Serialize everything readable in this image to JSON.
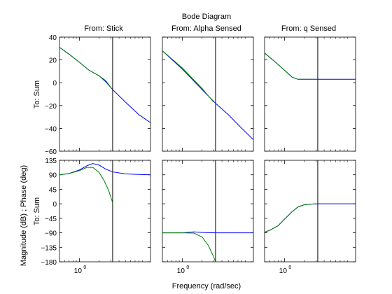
{
  "chart_data": {
    "type": "line",
    "title": "Bode Diagram",
    "xlabel": "Frequency  (rad/sec)",
    "ylabel": "Magnitude (dB) ; Phase (deg)",
    "column_titles": [
      "From: Stick",
      "From: Alpha Sensed",
      "From: q Sensed"
    ],
    "row_labels": [
      "To: Sum",
      "To: Sum"
    ],
    "x_tick_labels": [
      "10",
      "10",
      "10"
    ],
    "x_tick_exponent": "0",
    "xscale": "log",
    "xlim": [
      0.5,
      12
    ],
    "x_tick_value": 1,
    "marker_frequency": 3.2,
    "magnitude_ylim": [
      -60,
      40
    ],
    "magnitude_ticks": [
      "40",
      "20",
      "0",
      "−20",
      "−40",
      "−60"
    ],
    "magnitude_tick_values": [
      40,
      20,
      0,
      -20,
      -40,
      -60
    ],
    "phase_ylim": [
      -180,
      135
    ],
    "phase_ticks": [
      "135",
      "90",
      "45",
      "0",
      "−45",
      "−90",
      "−135",
      "−180"
    ],
    "phase_tick_values": [
      135,
      90,
      45,
      0,
      -45,
      -90,
      -135,
      -180
    ],
    "series_colors": [
      "#0000ff",
      "#008000"
    ],
    "panels": [
      {
        "row": 0,
        "col": 0,
        "series": [
          {
            "color": "#0000ff",
            "x": [
              0.5,
              0.7,
              1.0,
              1.4,
              2.0,
              2.5,
              3.2,
              5,
              8,
              12
            ],
            "y": [
              31,
              25,
              18,
              11,
              6,
              1,
              -6,
              -17,
              -28,
              -35
            ]
          },
          {
            "color": "#008000",
            "x": [
              0.5,
              0.7,
              1.0,
              1.4,
              2.0,
              2.5,
              3.0
            ],
            "y": [
              31,
              25,
              18,
              11,
              6,
              2,
              -4
            ]
          }
        ]
      },
      {
        "row": 0,
        "col": 1,
        "series": [
          {
            "color": "#0000ff",
            "x": [
              0.5,
              1.0,
              2.0,
              3.2,
              5,
              8,
              12
            ],
            "y": [
              28,
              12,
              -6,
              -18,
              -28,
              -40,
              -50
            ]
          },
          {
            "color": "#008000",
            "x": [
              0.5,
              1.0,
              2.0,
              3.0
            ],
            "y": [
              28,
              13,
              -5,
              -17
            ]
          }
        ]
      },
      {
        "row": 0,
        "col": 2,
        "series": [
          {
            "color": "#0000ff",
            "x": [
              0.5,
              0.7,
              1.0,
              1.3,
              1.6,
              2.0,
              3.2,
              6,
              12
            ],
            "y": [
              26,
              19,
              11,
              5,
              3,
              3,
              3,
              3,
              3
            ]
          },
          {
            "color": "#008000",
            "x": [
              0.5,
              0.7,
              1.0,
              1.3,
              1.6,
              2.0,
              3.0
            ],
            "y": [
              26,
              19,
              11,
              5,
              3,
              3,
              3
            ]
          }
        ]
      },
      {
        "row": 1,
        "col": 0,
        "series": [
          {
            "color": "#0000ff",
            "x": [
              0.5,
              0.7,
              1.0,
              1.3,
              1.6,
              2.0,
              2.5,
              3.2,
              5,
              8,
              12
            ],
            "y": [
              90,
              94,
              105,
              118,
              125,
              120,
              108,
              99,
              93,
              91,
              90
            ]
          },
          {
            "color": "#008000",
            "x": [
              0.5,
              0.7,
              1.0,
              1.3,
              1.6,
              2.0,
              2.4,
              2.8,
              3.2
            ],
            "y": [
              90,
              94,
              103,
              113,
              113,
              97,
              70,
              40,
              3
            ]
          }
        ]
      },
      {
        "row": 1,
        "col": 1,
        "series": [
          {
            "color": "#0000ff",
            "x": [
              0.5,
              1.0,
              1.5,
              2.0,
              3.2,
              6,
              12
            ],
            "y": [
              -90,
              -90,
              -87,
              -89,
              -90,
              -90,
              -90
            ]
          },
          {
            "color": "#008000",
            "x": [
              0.5,
              1.0,
              1.5,
              2.0,
              2.5,
              3.0,
              3.2
            ],
            "y": [
              -90,
              -90,
              -91,
              -103,
              -130,
              -165,
              -180
            ]
          }
        ]
      },
      {
        "row": 1,
        "col": 2,
        "series": [
          {
            "color": "#0000ff",
            "x": [
              0.5,
              0.6,
              0.8,
              1.0,
              1.3,
              1.6,
              2.0,
              2.5,
              3.2,
              6,
              12
            ],
            "y": [
              -88,
              -82,
              -68,
              -48,
              -25,
              -10,
              -3,
              -1,
              0,
              0,
              0
            ]
          },
          {
            "color": "#008000",
            "x": [
              0.5,
              0.6,
              0.8,
              1.0,
              1.3,
              1.6,
              2.0,
              2.5,
              3.0
            ],
            "y": [
              -88,
              -82,
              -68,
              -48,
              -25,
              -10,
              -3,
              -1,
              0
            ]
          }
        ]
      }
    ]
  }
}
